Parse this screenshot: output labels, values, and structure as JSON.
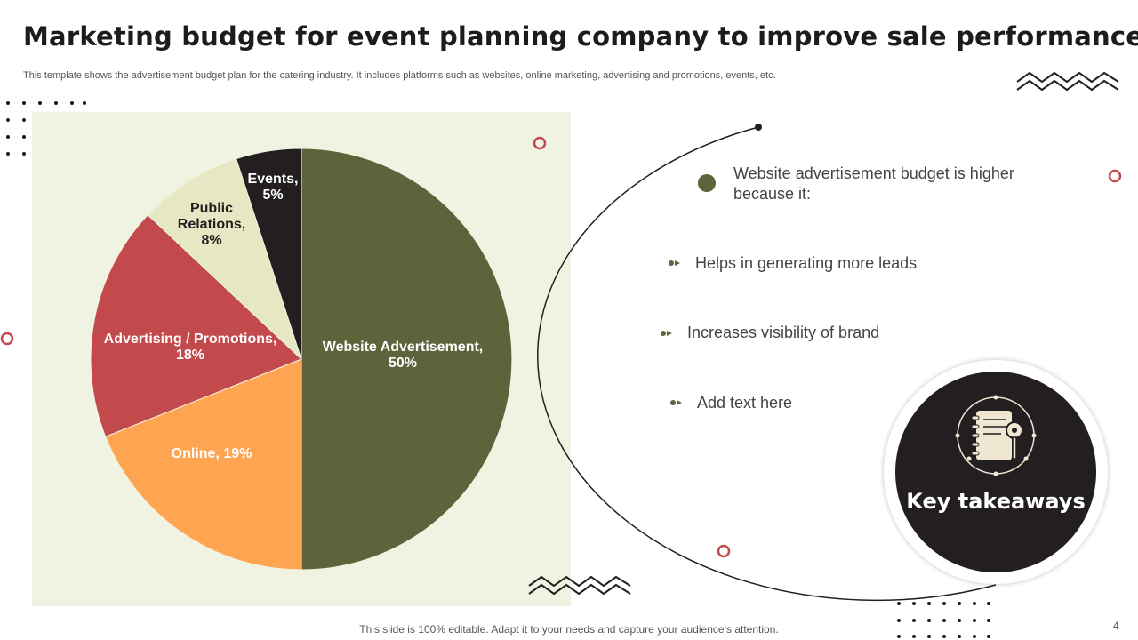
{
  "title": "Marketing budget for event planning company to improve sale performance",
  "subtitle": "This template shows the advertisement budget plan for the catering industry. It includes platforms such as websites, online marketing, advertising and promotions, events, etc.",
  "chart_data": {
    "type": "pie",
    "categories": [
      "Website Advertisement",
      "Online",
      "Advertising / Promotions",
      "Public Relations",
      "Events"
    ],
    "values": [
      50,
      19,
      18,
      8,
      5
    ],
    "unit": "%",
    "slice_labels": [
      [
        "Website Advertisement,",
        "50%"
      ],
      [
        "Online, 19%"
      ],
      [
        "Advertising / Promotions,",
        "18%"
      ],
      [
        "Public",
        "Relations,",
        "8%"
      ],
      [
        "Events,",
        "5%"
      ]
    ],
    "colors": [
      "#5e633b",
      "#ffa552",
      "#c24a4d",
      "#e5e8c3",
      "#231f20"
    ],
    "label_colors": [
      "#ffffff",
      "#ffffff",
      "#ffffff",
      "#231f20",
      "#ffffff"
    ]
  },
  "takeaways": {
    "heading": "Website advertisement budget is higher because it:",
    "points": [
      "Helps in generating more leads",
      "Increases visibility of brand",
      "Add text here"
    ],
    "badge_label": "Key takeaways"
  },
  "footer": "This slide is 100% editable. Adapt it to your needs and capture your audience’s attention.",
  "page_number": "4",
  "colors": {
    "accent_olive": "#5e633b",
    "accent_red": "#c24a4d",
    "dark": "#231f20",
    "panel_bg": "#f1f3e2"
  }
}
